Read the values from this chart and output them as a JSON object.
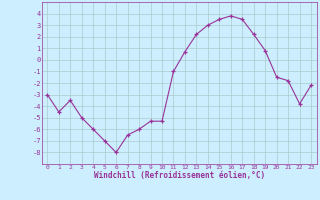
{
  "x": [
    0,
    1,
    2,
    3,
    4,
    5,
    6,
    7,
    8,
    9,
    10,
    11,
    12,
    13,
    14,
    15,
    16,
    17,
    18,
    19,
    20,
    21,
    22,
    23
  ],
  "y": [
    -3.0,
    -4.5,
    -3.5,
    -5.0,
    -6.0,
    -7.0,
    -8.0,
    -6.5,
    -6.0,
    -5.3,
    -5.3,
    -1.0,
    0.7,
    2.2,
    3.0,
    3.5,
    3.8,
    3.5,
    2.2,
    0.8,
    -1.5,
    -1.8,
    -3.8,
    -2.2
  ],
  "color": "#993399",
  "bg_color": "#cceeff",
  "grid_color": "#aacccc",
  "xlabel": "Windchill (Refroidissement éolien,°C)",
  "ylim": [
    -9,
    5
  ],
  "xlim": [
    -0.5,
    23.5
  ],
  "yticks": [
    -8,
    -7,
    -6,
    -5,
    -4,
    -3,
    -2,
    -1,
    0,
    1,
    2,
    3,
    4
  ],
  "xticks": [
    0,
    1,
    2,
    3,
    4,
    5,
    6,
    7,
    8,
    9,
    10,
    11,
    12,
    13,
    14,
    15,
    16,
    17,
    18,
    19,
    20,
    21,
    22,
    23
  ]
}
